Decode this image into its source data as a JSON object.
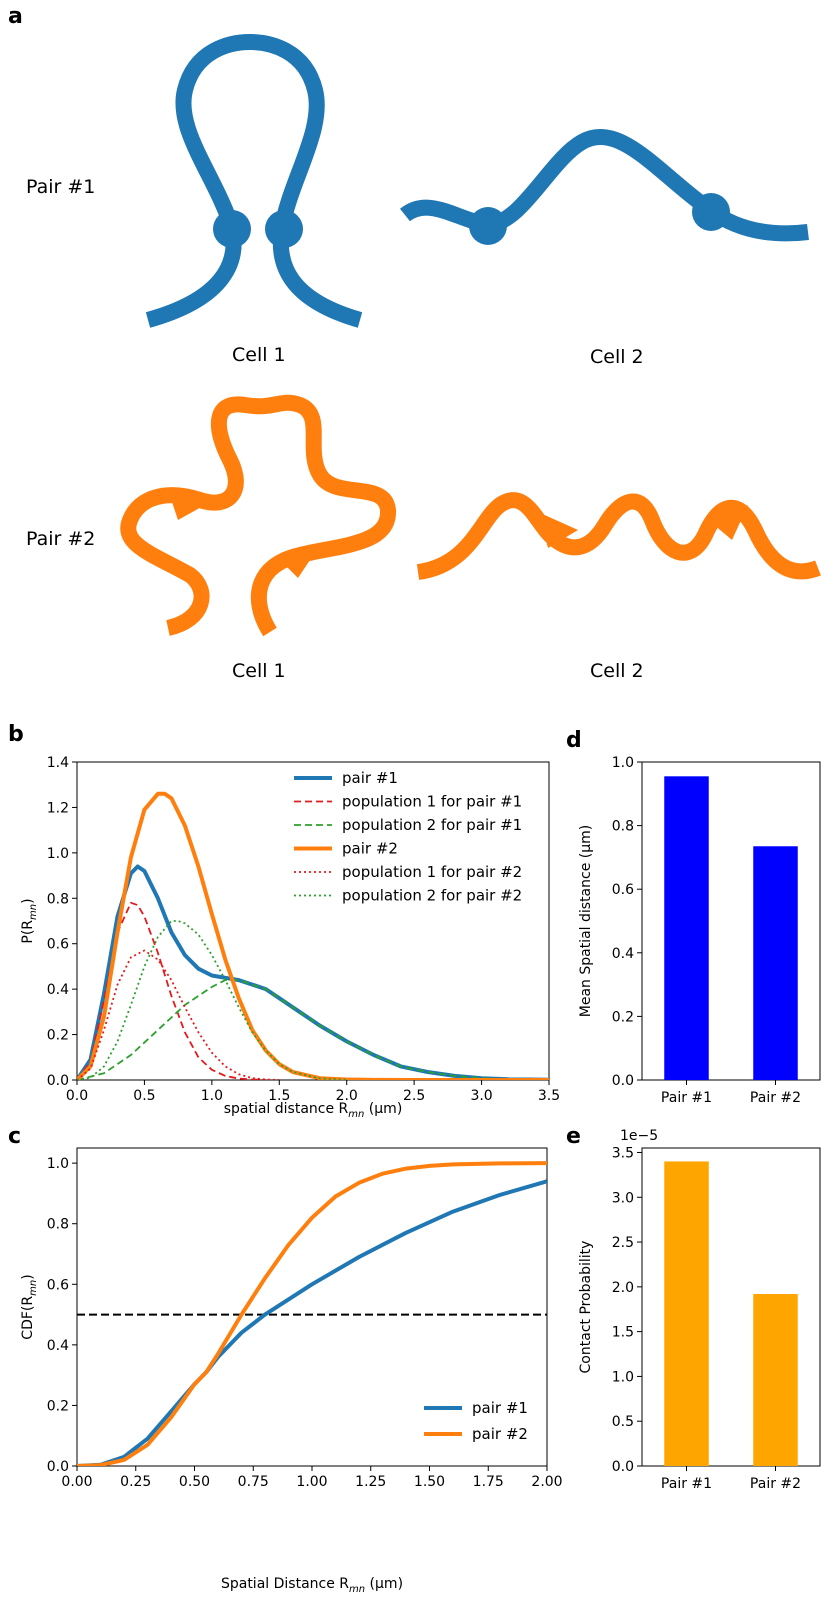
{
  "panel_a": {
    "letter": "a",
    "pair1_label": "Pair #1",
    "pair2_label": "Pair #2",
    "cell1_label": "Cell 1",
    "cell2_label": "Cell 2",
    "pair1_color": "#1f77b4",
    "pair2_color": "#ff7f0e"
  },
  "chart_data": [
    {
      "panel": "b",
      "type": "line",
      "xlabel": "spatial distance R_mn (µm)",
      "ylabel": "P(R_mn)",
      "xlim": [
        0,
        3.5
      ],
      "ylim": [
        0,
        1.4
      ],
      "xticks": [
        "0.0",
        "0.5",
        "1.0",
        "1.5",
        "2.0",
        "2.5",
        "3.0",
        "3.5"
      ],
      "yticks": [
        "0.0",
        "0.2",
        "0.4",
        "0.6",
        "0.8",
        "1.0",
        "1.2",
        "1.4"
      ],
      "legend_position": "top-right",
      "series": [
        {
          "name": "pair #1",
          "color": "#1f77b4",
          "style": "solid",
          "x": [
            0,
            0.1,
            0.2,
            0.3,
            0.4,
            0.45,
            0.5,
            0.6,
            0.7,
            0.8,
            0.9,
            1.0,
            1.1,
            1.2,
            1.3,
            1.4,
            1.5,
            1.6,
            1.8,
            2.0,
            2.2,
            2.4,
            2.6,
            2.8,
            3.0,
            3.2,
            3.5
          ],
          "y": [
            0,
            0.09,
            0.38,
            0.72,
            0.91,
            0.94,
            0.92,
            0.8,
            0.65,
            0.55,
            0.49,
            0.46,
            0.45,
            0.44,
            0.42,
            0.4,
            0.36,
            0.32,
            0.24,
            0.17,
            0.11,
            0.06,
            0.035,
            0.018,
            0.008,
            0.003,
            0.001
          ]
        },
        {
          "name": "population 1 for pair #1",
          "color": "#e41a1c",
          "style": "dashed",
          "x": [
            0,
            0.1,
            0.2,
            0.3,
            0.4,
            0.45,
            0.5,
            0.6,
            0.7,
            0.8,
            0.9,
            1.0,
            1.1,
            1.2,
            1.3,
            1.4
          ],
          "y": [
            0,
            0.08,
            0.35,
            0.65,
            0.78,
            0.77,
            0.72,
            0.56,
            0.37,
            0.21,
            0.1,
            0.045,
            0.018,
            0.006,
            0.002,
            0
          ]
        },
        {
          "name": "population 2 for pair #1",
          "color": "#2ca02c",
          "style": "dashed",
          "x": [
            0,
            0.2,
            0.4,
            0.6,
            0.8,
            1.0,
            1.1,
            1.2,
            1.4,
            1.6,
            1.8,
            2.0,
            2.2,
            2.4,
            2.6,
            2.8,
            3.0,
            3.2,
            3.5
          ],
          "y": [
            0,
            0.03,
            0.11,
            0.22,
            0.33,
            0.41,
            0.44,
            0.44,
            0.4,
            0.32,
            0.24,
            0.17,
            0.11,
            0.06,
            0.035,
            0.018,
            0.008,
            0.003,
            0.001
          ]
        },
        {
          "name": "pair #2",
          "color": "#ff7f0e",
          "style": "solid",
          "x": [
            0,
            0.1,
            0.2,
            0.3,
            0.4,
            0.5,
            0.6,
            0.65,
            0.7,
            0.8,
            0.9,
            1.0,
            1.1,
            1.2,
            1.3,
            1.4,
            1.5,
            1.6,
            1.8,
            2.0,
            2.2,
            2.5,
            3.0,
            3.5
          ],
          "y": [
            0,
            0.06,
            0.28,
            0.65,
            0.98,
            1.19,
            1.26,
            1.26,
            1.24,
            1.12,
            0.94,
            0.73,
            0.53,
            0.36,
            0.22,
            0.13,
            0.07,
            0.035,
            0.008,
            0.002,
            0.0005,
            0,
            0,
            0
          ]
        },
        {
          "name": "population 1 for pair #2",
          "color": "#e41a1c",
          "style": "dotted",
          "x": [
            0,
            0.1,
            0.2,
            0.3,
            0.4,
            0.5,
            0.6,
            0.7,
            0.8,
            0.9,
            1.0,
            1.1,
            1.2,
            1.3,
            1.4,
            1.5
          ],
          "y": [
            0,
            0.05,
            0.22,
            0.42,
            0.54,
            0.57,
            0.53,
            0.44,
            0.32,
            0.21,
            0.12,
            0.06,
            0.025,
            0.008,
            0.002,
            0
          ]
        },
        {
          "name": "population 2 for pair #2",
          "color": "#2ca02c",
          "style": "dotted",
          "x": [
            0,
            0.1,
            0.2,
            0.3,
            0.4,
            0.5,
            0.6,
            0.7,
            0.75,
            0.8,
            0.9,
            1.0,
            1.1,
            1.2,
            1.3,
            1.4,
            1.5,
            1.6,
            1.8,
            2.0
          ],
          "y": [
            0,
            0.01,
            0.06,
            0.17,
            0.33,
            0.5,
            0.63,
            0.7,
            0.7,
            0.69,
            0.64,
            0.55,
            0.44,
            0.32,
            0.21,
            0.13,
            0.07,
            0.035,
            0.007,
            0.001
          ]
        }
      ]
    },
    {
      "panel": "c",
      "type": "line",
      "xlabel": "Spatial Distance R_mn (µm)",
      "ylabel": "CDF(R_mn)",
      "xlim": [
        0,
        2.0
      ],
      "ylim": [
        0,
        1.05
      ],
      "xticks": [
        "0.00",
        "0.25",
        "0.50",
        "0.75",
        "1.00",
        "1.25",
        "1.50",
        "1.75",
        "2.00"
      ],
      "yticks": [
        "0.0",
        "0.2",
        "0.4",
        "0.6",
        "0.8",
        "1.0"
      ],
      "legend_position": "bottom-right",
      "reference_line": {
        "y": 0.5,
        "color": "#000000",
        "style": "dashed"
      },
      "series": [
        {
          "name": "pair #1",
          "color": "#1f77b4",
          "x": [
            0,
            0.1,
            0.2,
            0.3,
            0.4,
            0.5,
            0.55,
            0.6,
            0.7,
            0.8,
            0.9,
            1.0,
            1.2,
            1.4,
            1.6,
            1.8,
            2.0
          ],
          "y": [
            0,
            0.004,
            0.03,
            0.09,
            0.18,
            0.27,
            0.31,
            0.36,
            0.44,
            0.5,
            0.55,
            0.6,
            0.69,
            0.77,
            0.84,
            0.895,
            0.94
          ]
        },
        {
          "name": "pair #2",
          "color": "#ff7f0e",
          "x": [
            0,
            0.1,
            0.2,
            0.3,
            0.4,
            0.5,
            0.55,
            0.6,
            0.7,
            0.8,
            0.9,
            1.0,
            1.1,
            1.2,
            1.3,
            1.4,
            1.5,
            1.6,
            1.8,
            2.0
          ],
          "y": [
            0,
            0.003,
            0.02,
            0.07,
            0.16,
            0.27,
            0.31,
            0.37,
            0.5,
            0.62,
            0.73,
            0.82,
            0.89,
            0.935,
            0.965,
            0.982,
            0.991,
            0.996,
            0.999,
            1.0
          ]
        }
      ]
    },
    {
      "panel": "d",
      "type": "bar",
      "ylabel": "Mean Spatial distance  (µm)",
      "categories": [
        "Pair #1",
        "Pair #2"
      ],
      "values": [
        0.955,
        0.735
      ],
      "color": "#0000ff",
      "ylim": [
        0,
        1.0
      ],
      "yticks": [
        "0.0",
        "0.2",
        "0.4",
        "0.6",
        "0.8",
        "1.0"
      ]
    },
    {
      "panel": "e",
      "type": "bar",
      "ylabel": "Contact Probability",
      "offset_text": "1e−5",
      "categories": [
        "Pair #1",
        "Pair #2"
      ],
      "values": [
        3.4,
        1.92
      ],
      "color": "#ffa500",
      "ylim": [
        0,
        3.55
      ],
      "yticks": [
        "0.0",
        "0.5",
        "1.0",
        "1.5",
        "2.0",
        "2.5",
        "3.0",
        "3.5"
      ]
    }
  ],
  "panel_letters": {
    "b": "b",
    "c": "c",
    "d": "d",
    "e": "e"
  }
}
